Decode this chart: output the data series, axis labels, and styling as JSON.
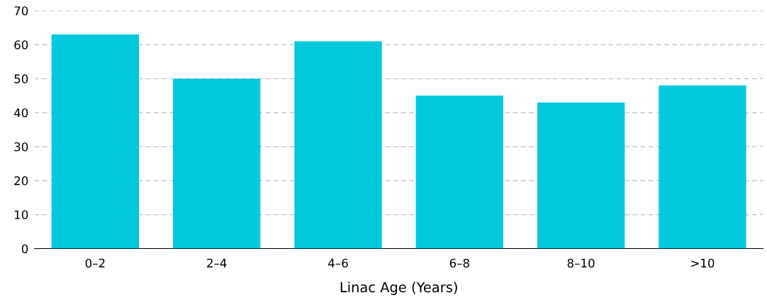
{
  "chart_data": {
    "type": "bar",
    "xlabel": "Linac Age (Years)",
    "categories": [
      "0–2",
      "2–4",
      "4–6",
      "6–8",
      "8–10",
      ">10"
    ],
    "values": [
      63,
      50,
      61,
      45,
      43,
      48
    ],
    "color": "#00c8da",
    "ylim": [
      0,
      70
    ],
    "yticks": [
      0,
      10,
      20,
      30,
      40,
      50,
      60,
      70
    ],
    "grid": "y",
    "line_style": "dashed"
  }
}
